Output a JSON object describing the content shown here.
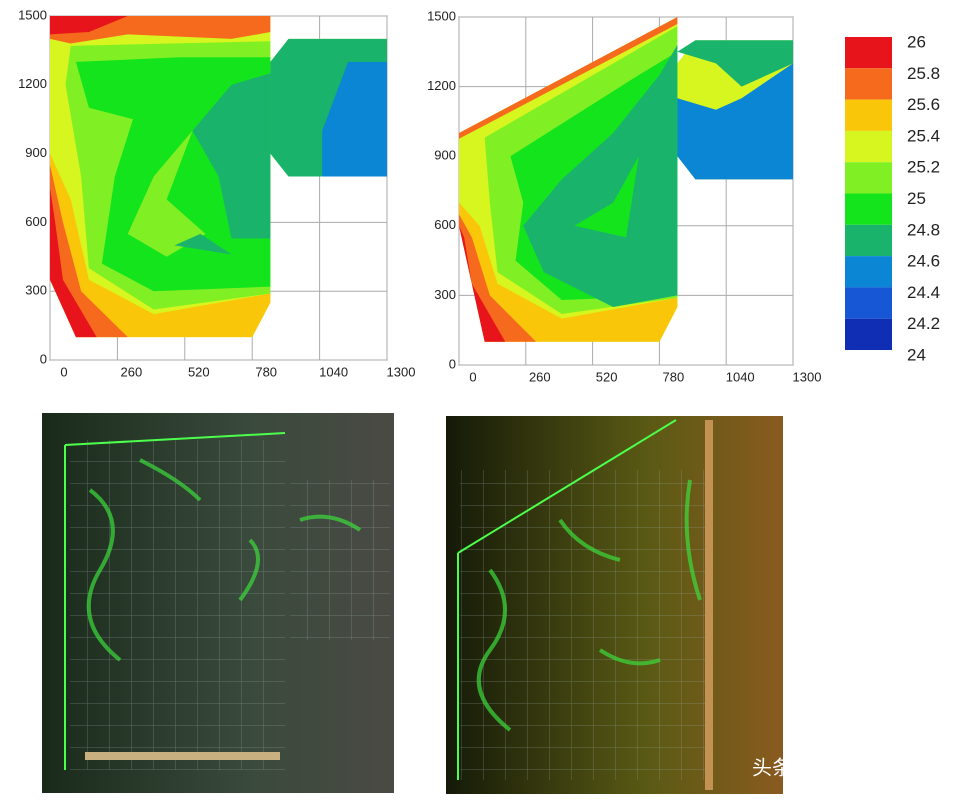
{
  "plots": [
    {
      "xlim": [
        0,
        1300
      ],
      "ylim": [
        0,
        1500
      ],
      "xticks": [
        0,
        260,
        520,
        780,
        1040,
        1300
      ],
      "yticks": [
        0,
        300,
        600,
        900,
        1200,
        1500
      ],
      "regions": [
        {
          "band": 3,
          "points": [
            [
              0,
              1500
            ],
            [
              850,
              1500
            ],
            [
              850,
              1300
            ],
            [
              920,
              1400
            ],
            [
              1300,
              1400
            ],
            [
              1300,
              800
            ],
            [
              920,
              800
            ],
            [
              850,
              900
            ],
            [
              850,
              250
            ],
            [
              780,
              100
            ],
            [
              100,
              100
            ],
            [
              0,
              350
            ]
          ]
        },
        {
          "band": 1,
          "points": [
            [
              0,
              1500
            ],
            [
              850,
              1500
            ],
            [
              850,
              1430
            ],
            [
              700,
              1400
            ],
            [
              300,
              1420
            ],
            [
              80,
              1380
            ],
            [
              0,
              1400
            ]
          ]
        },
        {
          "band": 0,
          "points": [
            [
              0,
              1500
            ],
            [
              300,
              1500
            ],
            [
              150,
              1430
            ],
            [
              0,
              1420
            ]
          ]
        },
        {
          "band": 2,
          "points": [
            [
              0,
              900
            ],
            [
              0,
              350
            ],
            [
              100,
              100
            ],
            [
              780,
              100
            ],
            [
              850,
              250
            ],
            [
              850,
              290
            ],
            [
              400,
              200
            ],
            [
              150,
              350
            ],
            [
              80,
              700
            ]
          ]
        },
        {
          "band": 1,
          "points": [
            [
              0,
              850
            ],
            [
              0,
              350
            ],
            [
              100,
              100
            ],
            [
              300,
              100
            ],
            [
              120,
              300
            ],
            [
              50,
              600
            ]
          ]
        },
        {
          "band": 0,
          "points": [
            [
              0,
              750
            ],
            [
              0,
              350
            ],
            [
              100,
              100
            ],
            [
              180,
              100
            ],
            [
              50,
              350
            ],
            [
              20,
              600
            ]
          ]
        },
        {
          "band": 4,
          "points": [
            [
              80,
              1370
            ],
            [
              850,
              1390
            ],
            [
              850,
              290
            ],
            [
              400,
              220
            ],
            [
              150,
              400
            ],
            [
              120,
              800
            ],
            [
              60,
              1200
            ]
          ]
        },
        {
          "band": 5,
          "points": [
            [
              100,
              1300
            ],
            [
              500,
              1320
            ],
            [
              850,
              1320
            ],
            [
              850,
              320
            ],
            [
              400,
              300
            ],
            [
              200,
              420
            ],
            [
              250,
              800
            ],
            [
              320,
              1050
            ],
            [
              150,
              1100
            ]
          ]
        },
        {
          "band": 4,
          "points": [
            [
              300,
              550
            ],
            [
              400,
              800
            ],
            [
              550,
              1000
            ],
            [
              450,
              700
            ],
            [
              600,
              550
            ],
            [
              450,
              450
            ]
          ]
        },
        {
          "band": 6,
          "points": [
            [
              550,
              1000
            ],
            [
              700,
              1200
            ],
            [
              850,
              1250
            ],
            [
              850,
              530
            ],
            [
              700,
              530
            ],
            [
              650,
              800
            ]
          ]
        },
        {
          "band": 6,
          "points": [
            [
              480,
              500
            ],
            [
              700,
              460
            ],
            [
              580,
              550
            ]
          ]
        },
        {
          "band": 6,
          "points": [
            [
              920,
              1400
            ],
            [
              1300,
              1400
            ],
            [
              1300,
              800
            ],
            [
              920,
              800
            ],
            [
              850,
              900
            ],
            [
              850,
              1300
            ]
          ]
        },
        {
          "band": 7,
          "points": [
            [
              1150,
              1300
            ],
            [
              1300,
              1300
            ],
            [
              1300,
              800
            ],
            [
              1050,
              800
            ],
            [
              1050,
              1000
            ],
            [
              1100,
              1150
            ]
          ]
        }
      ]
    },
    {
      "xlim": [
        0,
        1300
      ],
      "ylim": [
        0,
        1500
      ],
      "xticks": [
        0,
        260,
        520,
        780,
        1040,
        1300
      ],
      "yticks": [
        0,
        300,
        600,
        900,
        1200,
        1500
      ],
      "regions": [
        {
          "band": 3,
          "points": [
            [
              0,
              1000
            ],
            [
              850,
              1500
            ],
            [
              850,
              1300
            ],
            [
              920,
              1400
            ],
            [
              1300,
              1400
            ],
            [
              1300,
              800
            ],
            [
              920,
              800
            ],
            [
              850,
              900
            ],
            [
              850,
              250
            ],
            [
              780,
              100
            ],
            [
              100,
              100
            ],
            [
              0,
              650
            ]
          ]
        },
        {
          "band": 1,
          "points": [
            [
              0,
              1000
            ],
            [
              850,
              1500
            ],
            [
              850,
              1470
            ],
            [
              0,
              975
            ]
          ]
        },
        {
          "band": 2,
          "points": [
            [
              0,
              700
            ],
            [
              0,
              600
            ],
            [
              100,
              100
            ],
            [
              780,
              100
            ],
            [
              850,
              250
            ],
            [
              850,
              290
            ],
            [
              400,
              200
            ],
            [
              150,
              350
            ],
            [
              80,
              600
            ]
          ]
        },
        {
          "band": 1,
          "points": [
            [
              0,
              650
            ],
            [
              0,
              600
            ],
            [
              100,
              100
            ],
            [
              300,
              100
            ],
            [
              120,
              300
            ],
            [
              50,
              550
            ]
          ]
        },
        {
          "band": 0,
          "points": [
            [
              0,
              600
            ],
            [
              100,
              100
            ],
            [
              180,
              100
            ],
            [
              50,
              350
            ],
            [
              20,
              550
            ]
          ]
        },
        {
          "band": 4,
          "points": [
            [
              100,
              980
            ],
            [
              850,
              1460
            ],
            [
              850,
              290
            ],
            [
              400,
              220
            ],
            [
              150,
              400
            ],
            [
              120,
              700
            ]
          ]
        },
        {
          "band": 5,
          "points": [
            [
              200,
              900
            ],
            [
              700,
              1250
            ],
            [
              850,
              1350
            ],
            [
              850,
              300
            ],
            [
              400,
              280
            ],
            [
              220,
              450
            ],
            [
              250,
              700
            ]
          ]
        },
        {
          "band": 6,
          "points": [
            [
              250,
              600
            ],
            [
              400,
              800
            ],
            [
              600,
              1000
            ],
            [
              780,
              1250
            ],
            [
              850,
              1380
            ],
            [
              850,
              300
            ],
            [
              600,
              250
            ],
            [
              330,
              400
            ]
          ]
        },
        {
          "band": 5,
          "points": [
            [
              450,
              600
            ],
            [
              600,
              700
            ],
            [
              700,
              900
            ],
            [
              650,
              550
            ]
          ]
        },
        {
          "band": 6,
          "points": [
            [
              920,
              1400
            ],
            [
              1300,
              1400
            ],
            [
              1300,
              1300
            ],
            [
              1100,
              1200
            ],
            [
              1000,
              1300
            ],
            [
              850,
              1350
            ]
          ]
        },
        {
          "band": 7,
          "points": [
            [
              850,
              900
            ],
            [
              920,
              800
            ],
            [
              1300,
              800
            ],
            [
              1300,
              1300
            ],
            [
              1100,
              1150
            ],
            [
              1000,
              1100
            ],
            [
              850,
              1150
            ]
          ]
        }
      ]
    }
  ],
  "legend": {
    "levels": [
      26,
      25.8,
      25.6,
      25.4,
      25.2,
      25,
      24.8,
      24.6,
      24.4,
      24.2,
      24
    ],
    "colors": [
      "#e8141c",
      "#f66a1d",
      "#f9c60a",
      "#d7f51e",
      "#80f024",
      "#14e41c",
      "#1ab36b",
      "#0a86d4",
      "#1757d6",
      "#0f2eb3"
    ]
  },
  "watermark": "头条 @郭鹏学暖通"
}
